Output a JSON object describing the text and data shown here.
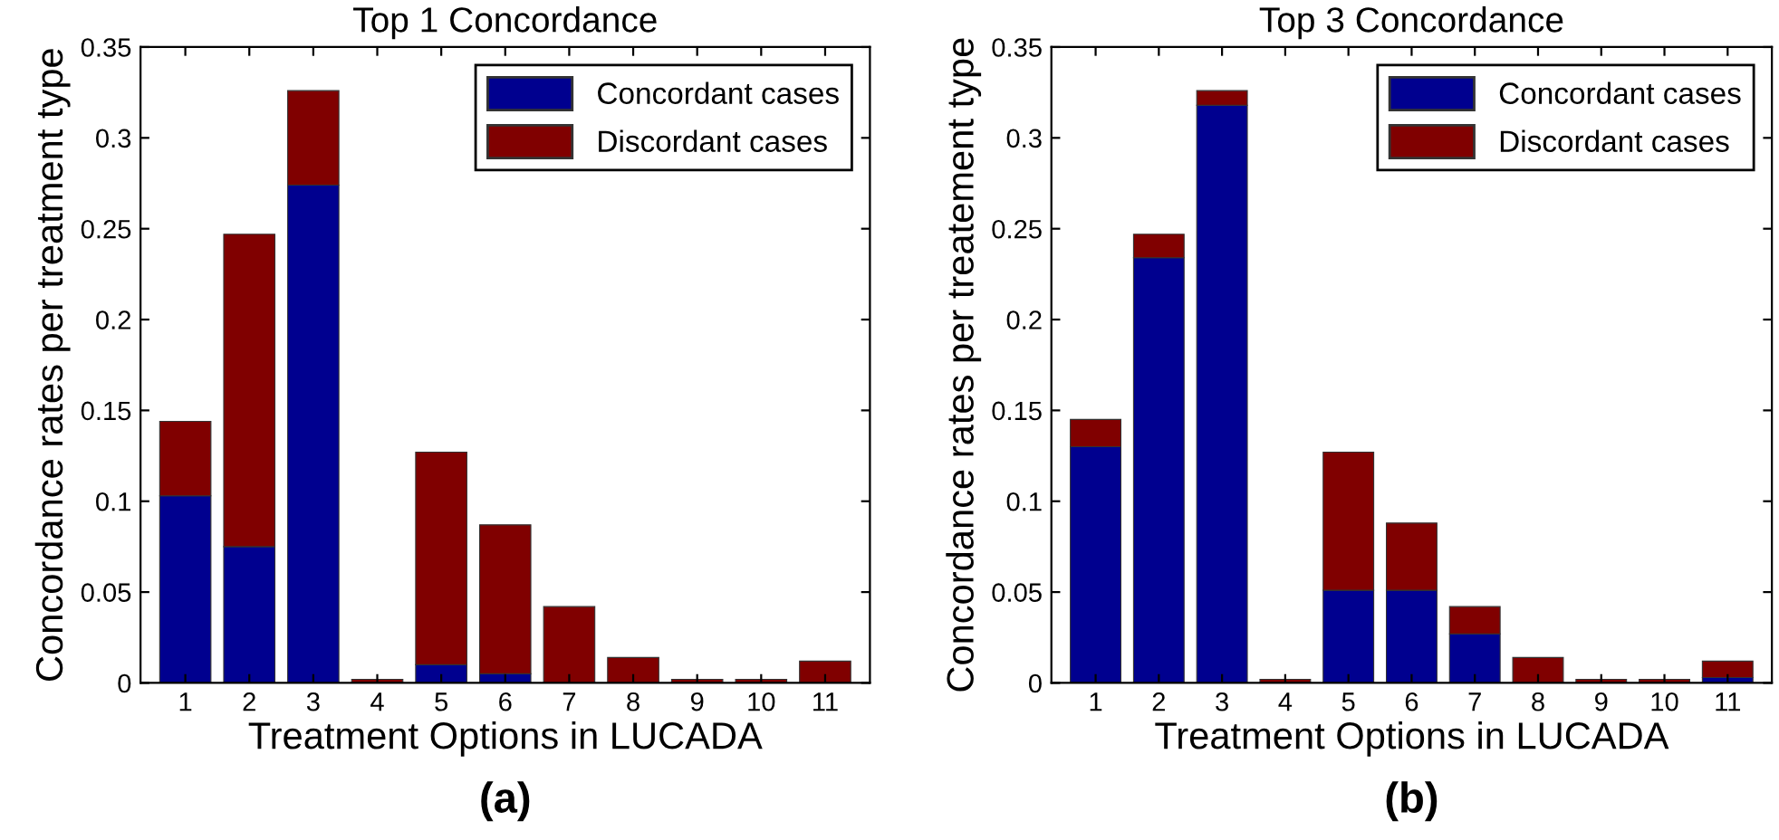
{
  "chart_data": [
    {
      "type": "bar",
      "stacked": true,
      "title": "Top 1 Concordance",
      "xlabel": "Treatment Options in LUCADA",
      "ylabel": "Concordance rates per treatment type",
      "categories": [
        "1",
        "2",
        "3",
        "4",
        "5",
        "6",
        "7",
        "8",
        "9",
        "10",
        "11"
      ],
      "series": [
        {
          "name": "Concordant cases",
          "color": "#00008f",
          "values": [
            0.103,
            0.075,
            0.274,
            0,
            0.01,
            0.005,
            0,
            0,
            0,
            0,
            0
          ]
        },
        {
          "name": "Discordant cases",
          "color": "#800000",
          "values": [
            0.041,
            0.172,
            0.052,
            0.002,
            0.117,
            0.082,
            0.042,
            0.014,
            0.002,
            0.002,
            0.012
          ]
        }
      ],
      "ylim": [
        0,
        0.35
      ],
      "yticks": [
        0,
        0.05,
        0.1,
        0.15,
        0.2,
        0.25,
        0.3,
        0.35
      ],
      "grid": false,
      "legend": "top right",
      "annotations": [
        "(a)"
      ]
    },
    {
      "type": "bar",
      "stacked": true,
      "title": "Top 3 Concordance",
      "xlabel": "Treatment Options in LUCADA",
      "ylabel": "Concordance rates per treatement type",
      "categories": [
        "1",
        "2",
        "3",
        "4",
        "5",
        "6",
        "7",
        "8",
        "9",
        "10",
        "11"
      ],
      "series": [
        {
          "name": "Concordant cases",
          "color": "#00008f",
          "values": [
            0.13,
            0.234,
            0.318,
            0,
            0.051,
            0.051,
            0.027,
            null,
            0,
            0,
            0.003
          ]
        },
        {
          "name": "Discordant cases",
          "color": "#800000",
          "values": [
            0.015,
            0.013,
            0.008,
            0.002,
            0.076,
            0.037,
            0.015,
            0.014,
            0.002,
            0.002,
            0.009
          ]
        }
      ],
      "ylim": [
        0,
        0.35
      ],
      "yticks": [
        0,
        0.05,
        0.1,
        0.15,
        0.2,
        0.25,
        0.3,
        0.35
      ],
      "grid": false,
      "legend": "top right",
      "annotations": [
        "(b)"
      ]
    }
  ]
}
